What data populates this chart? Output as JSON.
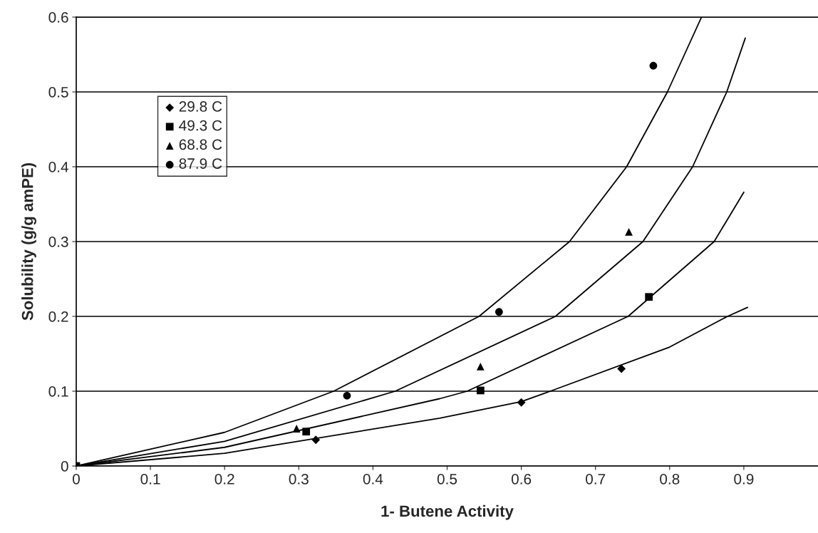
{
  "chart_data": {
    "type": "scatter",
    "xlabel": "1- Butene Activity",
    "ylabel": "Solubility (g/g amPE)",
    "xlim": [
      0,
      1
    ],
    "xticks": [
      0,
      0.1,
      0.2,
      0.3,
      0.4,
      0.5,
      0.6,
      0.7,
      0.8,
      0.9
    ],
    "ylim": [
      0,
      0.6
    ],
    "yticks": [
      0,
      0.1,
      0.2,
      0.3,
      0.4,
      0.5,
      0.6
    ],
    "grid": "y",
    "legend": "top left",
    "series": [
      {
        "name": "29.8 C",
        "marker": "diamond",
        "color": "#000000",
        "x": [
          0.323,
          0.6,
          0.735
        ],
        "values": [
          0.035,
          0.085,
          0.13
        ]
      },
      {
        "name": "49.3 C",
        "marker": "square",
        "color": "#000000",
        "x": [
          0,
          0.31,
          0.545,
          0.772
        ],
        "values": [
          0,
          0.046,
          0.101,
          0.226
        ]
      },
      {
        "name": "68.8 C",
        "marker": "triangle",
        "color": "#000000",
        "x": [
          0.297,
          0.545,
          0.745
        ],
        "values": [
          0.05,
          0.133,
          0.313
        ]
      },
      {
        "name": "87.9 C",
        "marker": "circle",
        "color": "#000000",
        "x": [
          0.365,
          0.57,
          0.778
        ],
        "values": [
          0.094,
          0.206,
          0.535
        ]
      },
      {
        "type": "line",
        "marker": "none",
        "color": "#000000",
        "x": [
          0,
          0.2,
          0.49,
          0.6,
          0.639,
          0.8,
          0.878,
          0.905
        ],
        "values": [
          0,
          0.017,
          0.064,
          0.086,
          0.1,
          0.159,
          0.2,
          0.212
        ]
      },
      {
        "type": "line",
        "marker": "none",
        "color": "#000000",
        "x": [
          0,
          0.2,
          0.49,
          0.527,
          0.744,
          0.86,
          0.9
        ],
        "values": [
          0,
          0.025,
          0.09,
          0.1,
          0.2,
          0.3,
          0.366
        ]
      },
      {
        "type": "line",
        "marker": "none",
        "color": "#000000",
        "x": [
          0,
          0.2,
          0.43,
          0.646,
          0.764,
          0.831,
          0.877,
          0.902
        ],
        "values": [
          0,
          0.033,
          0.1,
          0.2,
          0.3,
          0.4,
          0.5,
          0.572
        ]
      },
      {
        "type": "line",
        "marker": "none",
        "color": "#000000",
        "x": [
          0,
          0.2,
          0.347,
          0.543,
          0.665,
          0.742,
          0.797,
          0.843
        ],
        "values": [
          0,
          0.045,
          0.1,
          0.2,
          0.3,
          0.4,
          0.5,
          0.6
        ]
      }
    ]
  }
}
